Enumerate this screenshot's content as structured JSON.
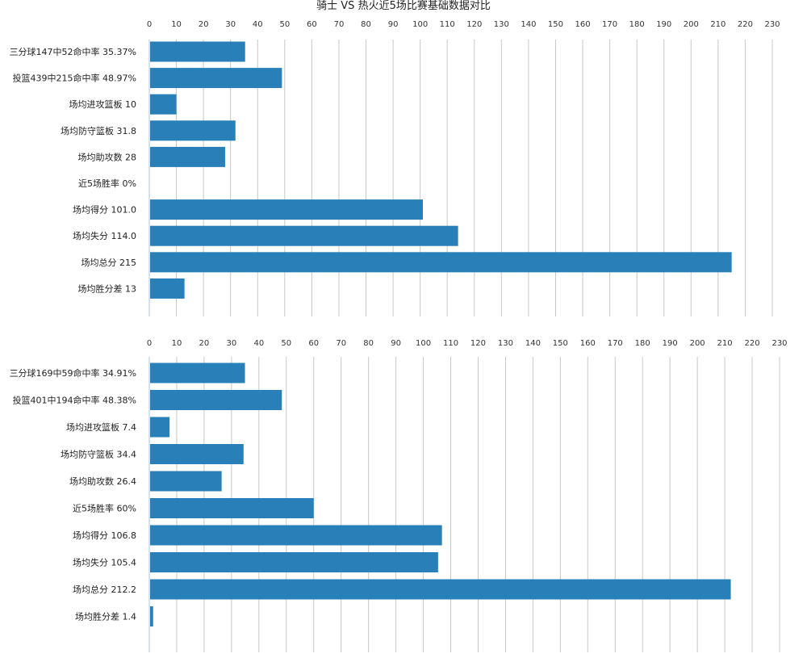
{
  "page": {
    "title": "骑士 VS 热火近5场比赛基础数据对比"
  },
  "colors": {
    "bar": "#2980b9"
  },
  "chart_data": [
    {
      "type": "bar",
      "orientation": "horizontal",
      "xlim": [
        0,
        230
      ],
      "tick_step": 10,
      "grid": true,
      "categories": [
        "三分球147中52命中率 35.37%",
        "投篮439中215命中率 48.97%",
        "场均进攻篮板 10",
        "场均防守篮板 31.8",
        "场均助攻数 28",
        "近5场胜率 0%",
        "场均得分 101.0",
        "场均失分 114.0",
        "场均总分 215",
        "场均胜分差 13"
      ],
      "values": [
        35.37,
        48.97,
        10,
        31.8,
        28,
        0,
        101.0,
        114.0,
        215,
        13
      ]
    },
    {
      "type": "bar",
      "orientation": "horizontal",
      "xlim": [
        0,
        230
      ],
      "tick_step": 10,
      "grid": true,
      "categories": [
        "三分球169中59命中率 34.91%",
        "投篮401中194命中率 48.38%",
        "场均进攻篮板 7.4",
        "场均防守篮板 34.4",
        "场均助攻数 26.4",
        "近5场胜率 60%",
        "场均得分 106.8",
        "场均失分 105.4",
        "场均总分 212.2",
        "场均胜分差 1.4"
      ],
      "values": [
        34.91,
        48.38,
        7.4,
        34.4,
        26.4,
        60,
        106.8,
        105.4,
        212.2,
        1.4
      ]
    }
  ]
}
